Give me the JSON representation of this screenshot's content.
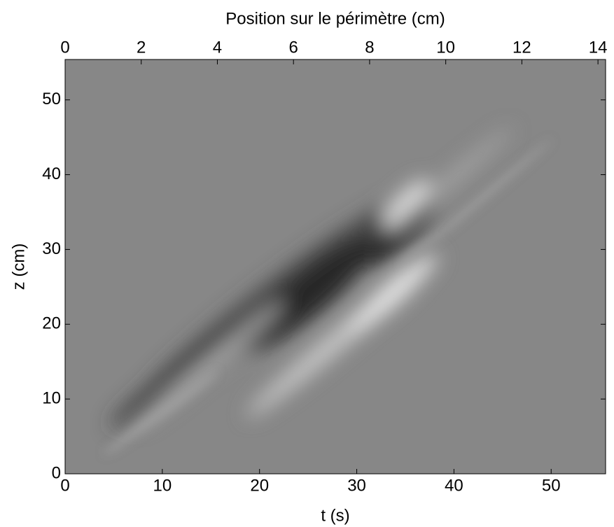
{
  "chart_data": {
    "type": "image",
    "xlabel": "t (s)",
    "x2label": "Position sur le périmètre (cm)",
    "ylabel": "z (cm)",
    "xlim": [
      0,
      55.6
    ],
    "xticks": [
      0,
      10,
      20,
      30,
      40,
      50
    ],
    "x2lim": [
      0,
      14.2
    ],
    "x2ticks": [
      0,
      2,
      4,
      6,
      8,
      10,
      12,
      14
    ],
    "ylim": [
      0,
      55.4
    ],
    "yticks": [
      0,
      10,
      20,
      30,
      40,
      50
    ]
  }
}
